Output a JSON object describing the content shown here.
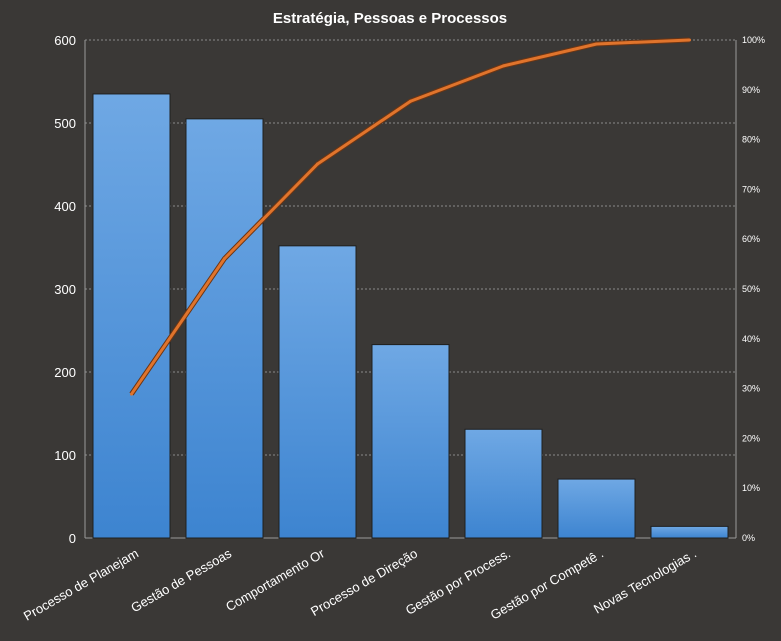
{
  "chart_data": {
    "type": "bar",
    "title": "Estratégia,  Pessoas  e  Processos",
    "categories": [
      "Processo de Planejam",
      "Gestão de Pessoas",
      "Comportamento  Or",
      "Processo de Direção",
      "Gestão por Process.",
      "Gestão por Competê .",
      "Novas Tecnologias ."
    ],
    "series": [
      {
        "type": "bar",
        "values": [
          535,
          505,
          352,
          233,
          131,
          71,
          14
        ],
        "color": "#4a8fd6"
      },
      {
        "type": "line",
        "axis": "right",
        "values": [
          28.9,
          56.1,
          75.1,
          87.7,
          94.8,
          99.2,
          100
        ],
        "color": "#e0742c"
      }
    ],
    "ylim": [
      0,
      600
    ],
    "yticks": [
      "0",
      "100",
      "200",
      "300",
      "400",
      "500",
      "600"
    ],
    "y2lim": [
      0,
      100
    ],
    "y2ticks": [
      "0%",
      "10%",
      "20%",
      "30%",
      "40%",
      "50%",
      "60%",
      "70%",
      "80%",
      "90%",
      "100%"
    ],
    "grid": true,
    "legend": "none",
    "background": "#3a3836",
    "text_color": "#ffffff"
  }
}
